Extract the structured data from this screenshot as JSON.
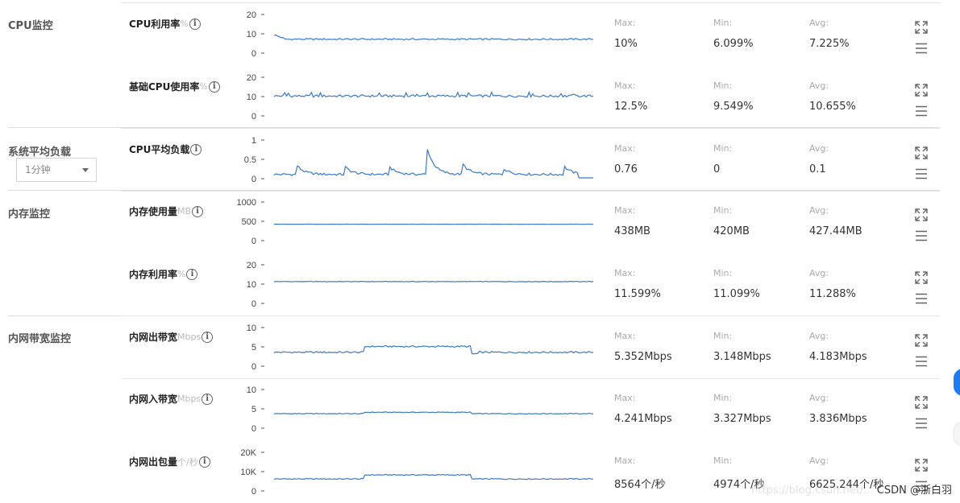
{
  "colors": {
    "line": "#3a78c9",
    "accent": "#1e7cf0"
  },
  "stat_labels": {
    "max": "Max:",
    "min": "Min:",
    "avg": "Avg:"
  },
  "groups": [
    {
      "title": "CPU监控"
    },
    {
      "title": "系统平均负载",
      "select_value": "1分钟"
    },
    {
      "title": "内存监控"
    },
    {
      "title": "内网带宽监控"
    }
  ],
  "metrics": [
    {
      "name": "CPU利用率",
      "unit": "%",
      "ticks": [
        "20",
        "10",
        "0"
      ],
      "max": "10%",
      "min": "6.099%",
      "avg": "7.225%"
    },
    {
      "name": "基础CPU使用率",
      "unit": "%",
      "ticks": [
        "20",
        "10",
        "0"
      ],
      "max": "12.5%",
      "min": "9.549%",
      "avg": "10.655%"
    },
    {
      "name": "CPU平均负载",
      "unit": "",
      "ticks": [
        "1",
        "0.5",
        "0"
      ],
      "max": "0.76",
      "min": "0",
      "avg": "0.1"
    },
    {
      "name": "内存使用量",
      "unit": "MB",
      "ticks": [
        "1000",
        "500",
        "0"
      ],
      "max": "438MB",
      "min": "420MB",
      "avg": "427.44MB"
    },
    {
      "name": "内存利用率",
      "unit": "%",
      "ticks": [
        "20",
        "10",
        "0"
      ],
      "max": "11.599%",
      "min": "11.099%",
      "avg": "11.288%"
    },
    {
      "name": "内网出带宽",
      "unit": "Mbps",
      "ticks": [
        "10",
        "5",
        "0"
      ],
      "max": "5.352Mbps",
      "min": "3.148Mbps",
      "avg": "4.183Mbps"
    },
    {
      "name": "内网入带宽",
      "unit": "Mbps",
      "ticks": [
        "10",
        "5",
        "0"
      ],
      "max": "4.241Mbps",
      "min": "3.327Mbps",
      "avg": "3.836Mbps"
    },
    {
      "name": "内网出包量",
      "unit": "个/秒",
      "ticks": [
        "20K",
        "10K",
        "0"
      ],
      "max": "8564个/秒",
      "min": "4974个/秒",
      "avg": "6625.244个/秒"
    }
  ],
  "watermark": {
    "url": "https://blog.csdn.net/...",
    "brand": "CSDN @浙白羽"
  }
}
